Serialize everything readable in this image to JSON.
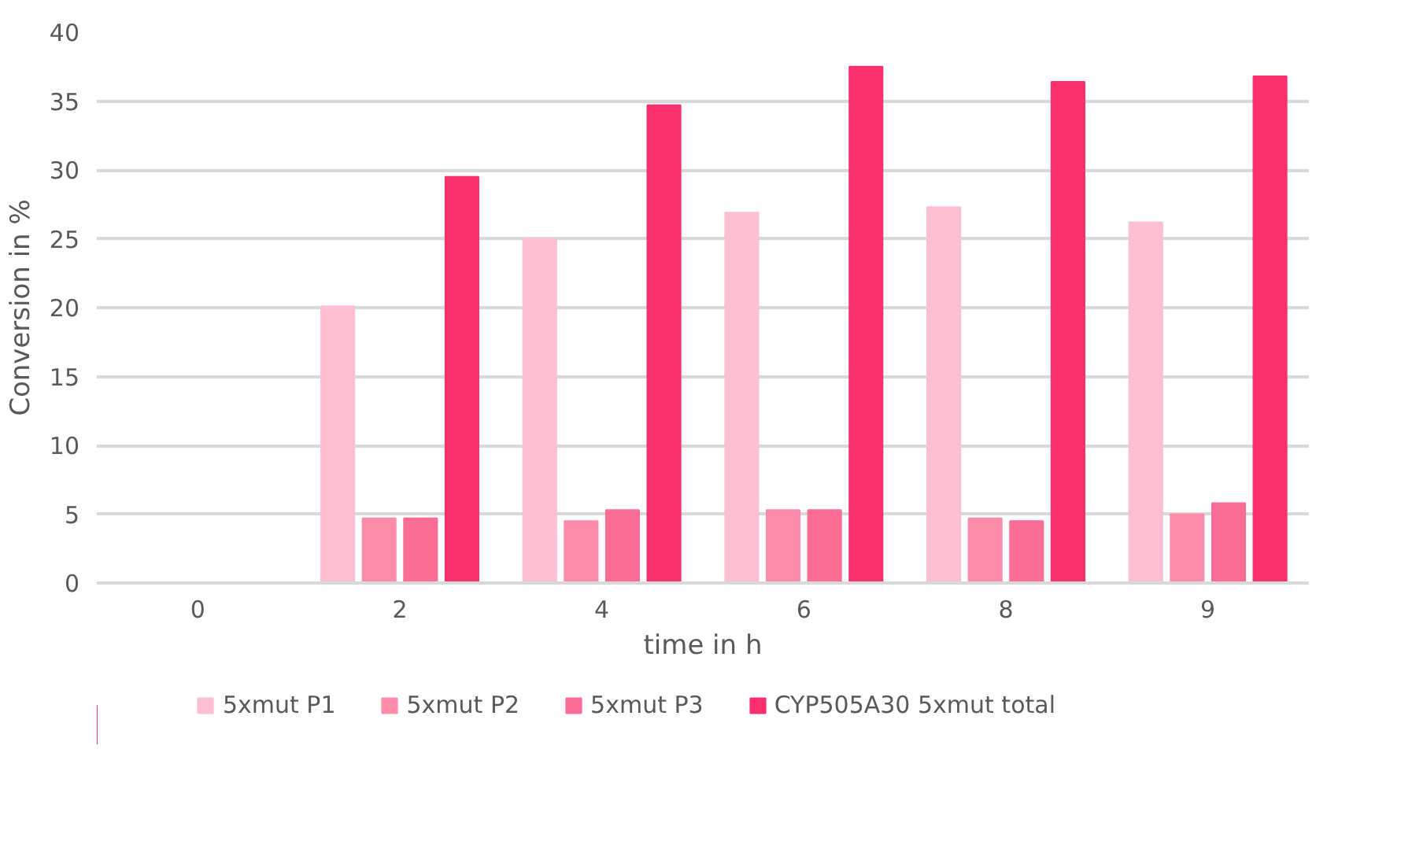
{
  "chart_data": {
    "type": "bar",
    "xlabel": "time in h",
    "ylabel": "Conversion in %",
    "categories": [
      "0",
      "2",
      "4",
      "6",
      "8",
      "9"
    ],
    "series": [
      {
        "name": "5xmut P1",
        "color": "#fdbfd2",
        "values": [
          0,
          20.1,
          25.0,
          26.9,
          27.3,
          26.2
        ]
      },
      {
        "name": "5xmut P2",
        "color": "#fb8cab",
        "values": [
          0,
          4.7,
          4.5,
          5.3,
          4.7,
          5.0
        ]
      },
      {
        "name": "5xmut P3",
        "color": "#fb6d94",
        "values": [
          0,
          4.7,
          5.3,
          5.3,
          4.5,
          5.8
        ]
      },
      {
        "name": "CYP505A30 5xmut total",
        "color": "#fa2f6d",
        "values": [
          0,
          29.5,
          34.7,
          37.5,
          36.4,
          36.8
        ]
      }
    ],
    "ylim": [
      0,
      40
    ],
    "yticks": [
      0,
      5,
      10,
      15,
      20,
      25,
      30,
      35,
      40
    ],
    "grid": "y",
    "legend": "bottom"
  }
}
